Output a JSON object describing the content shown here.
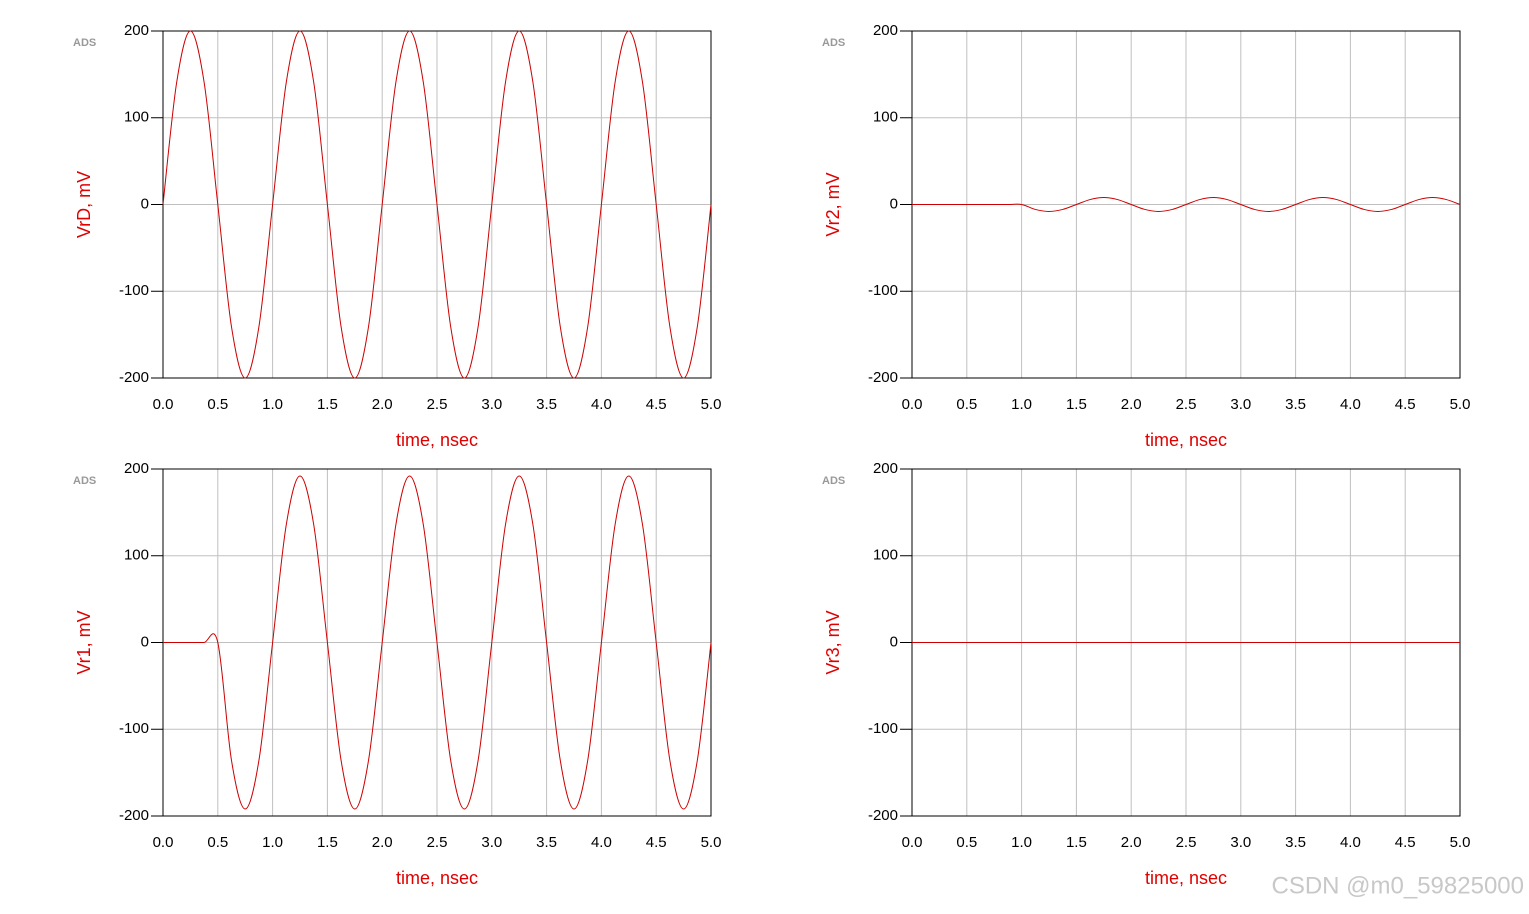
{
  "chart_data": [
    {
      "type": "line",
      "logo": "ADS",
      "ylabel": "VrD, mV",
      "xlabel": "time, nsec",
      "color": "#cc0000",
      "grid": true,
      "x": [
        0,
        0.125,
        0.25,
        0.375,
        0.5,
        0.625,
        0.75,
        0.875,
        1,
        1.125,
        1.25,
        1.375,
        1.5,
        1.625,
        1.75,
        1.875,
        2,
        2.125,
        2.25,
        2.375,
        2.5,
        2.625,
        2.75,
        2.875,
        3,
        3.125,
        3.25,
        3.375,
        3.5,
        3.625,
        3.75,
        3.875,
        4,
        4.125,
        4.25,
        4.375,
        4.5,
        4.625,
        4.75,
        4.875,
        5
      ],
      "values": [
        0,
        141,
        200,
        141,
        0,
        -141,
        -200,
        -141,
        0,
        141,
        200,
        141,
        0,
        -141,
        -200,
        -141,
        0,
        141,
        200,
        141,
        0,
        -141,
        -200,
        -141,
        0,
        141,
        200,
        141,
        0,
        -141,
        -200,
        -141,
        0,
        141,
        200,
        141,
        0,
        -141,
        -200,
        -141,
        0
      ],
      "xlim": [
        0,
        5
      ],
      "ylim": [
        -200,
        200
      ],
      "xticks": [
        {
          "value": 0,
          "label": "0.0"
        },
        0.5,
        {
          "value": 1,
          "label": "1.0"
        },
        1.5,
        {
          "value": 2,
          "label": "2.0"
        },
        2.5,
        {
          "value": 3,
          "label": "3.0"
        },
        3.5,
        {
          "value": 4,
          "label": "4.0"
        },
        4.5,
        {
          "value": 5,
          "label": "5.0"
        }
      ],
      "yticks": [
        -200,
        -100,
        0,
        100,
        200
      ]
    },
    {
      "type": "line",
      "logo": "ADS",
      "ylabel": "Vr2, mV",
      "xlabel": "time, nsec",
      "color": "#cc0000",
      "grid": true,
      "x": [
        0,
        0.125,
        0.25,
        0.375,
        0.5,
        0.625,
        0.75,
        0.875,
        1,
        1.125,
        1.25,
        1.375,
        1.5,
        1.625,
        1.75,
        1.875,
        2,
        2.125,
        2.25,
        2.375,
        2.5,
        2.625,
        2.75,
        2.875,
        3,
        3.125,
        3.25,
        3.375,
        3.5,
        3.625,
        3.75,
        3.875,
        4,
        4.125,
        4.25,
        4.375,
        4.5,
        4.625,
        4.75,
        4.875,
        5
      ],
      "values": [
        0,
        0,
        0,
        0,
        0,
        0,
        0,
        0,
        0,
        -5.7,
        -8,
        -5.7,
        0,
        5.7,
        8,
        5.7,
        0,
        -5.7,
        -8,
        -5.7,
        0,
        5.7,
        8,
        5.7,
        0,
        -5.7,
        -8,
        -5.7,
        0,
        5.7,
        8,
        5.7,
        0,
        -5.7,
        -8,
        -5.7,
        0,
        5.7,
        8,
        5.7,
        0
      ],
      "xlim": [
        0,
        5
      ],
      "ylim": [
        -200,
        200
      ],
      "xticks": [
        {
          "value": 0,
          "label": "0.0"
        },
        0.5,
        {
          "value": 1,
          "label": "1.0"
        },
        1.5,
        {
          "value": 2,
          "label": "2.0"
        },
        2.5,
        {
          "value": 3,
          "label": "3.0"
        },
        3.5,
        {
          "value": 4,
          "label": "4.0"
        },
        4.5,
        {
          "value": 5,
          "label": "5.0"
        }
      ],
      "yticks": [
        -200,
        -100,
        0,
        100,
        200
      ]
    },
    {
      "type": "line",
      "logo": "ADS",
      "ylabel": "Vr1, mV",
      "xlabel": "time, nsec",
      "color": "#cc0000",
      "grid": true,
      "x": [
        0,
        0.125,
        0.25,
        0.375,
        0.5,
        0.625,
        0.75,
        0.875,
        1,
        1.125,
        1.25,
        1.375,
        1.5,
        1.625,
        1.75,
        1.875,
        2,
        2.125,
        2.25,
        2.375,
        2.5,
        2.625,
        2.75,
        2.875,
        3,
        3.125,
        3.25,
        3.375,
        3.5,
        3.625,
        3.75,
        3.875,
        4,
        4.125,
        4.25,
        4.375,
        4.5,
        4.625,
        4.75,
        4.875,
        5
      ],
      "values": [
        0,
        0,
        0,
        0,
        0,
        -136,
        -192,
        -136,
        0,
        136,
        192,
        136,
        0,
        -136,
        -192,
        -136,
        0,
        136,
        192,
        136,
        0,
        -136,
        -192,
        -136,
        0,
        136,
        192,
        136,
        0,
        -136,
        -192,
        -136,
        0,
        136,
        192,
        136,
        0,
        -136,
        -192,
        -136,
        0
      ],
      "xlim": [
        0,
        5
      ],
      "ylim": [
        -200,
        200
      ],
      "xticks": [
        {
          "value": 0,
          "label": "0.0"
        },
        0.5,
        {
          "value": 1,
          "label": "1.0"
        },
        1.5,
        {
          "value": 2,
          "label": "2.0"
        },
        2.5,
        {
          "value": 3,
          "label": "3.0"
        },
        3.5,
        {
          "value": 4,
          "label": "4.0"
        },
        4.5,
        {
          "value": 5,
          "label": "5.0"
        }
      ],
      "yticks": [
        -200,
        -100,
        0,
        100,
        200
      ]
    },
    {
      "type": "line",
      "logo": "ADS",
      "ylabel": "Vr3, mV",
      "xlabel": "time, nsec",
      "color": "#cc0000",
      "grid": true,
      "x": [
        0,
        0.125,
        0.25,
        0.375,
        0.5,
        0.625,
        0.75,
        0.875,
        1,
        1.125,
        1.25,
        1.375,
        1.5,
        1.625,
        1.75,
        1.875,
        2,
        2.125,
        2.25,
        2.375,
        2.5,
        2.625,
        2.75,
        2.875,
        3,
        3.125,
        3.25,
        3.375,
        3.5,
        3.625,
        3.75,
        3.875,
        4,
        4.125,
        4.25,
        4.375,
        4.5,
        4.625,
        4.75,
        4.875,
        5
      ],
      "values": [
        0,
        0,
        0,
        0,
        0,
        0,
        0,
        0,
        0,
        0,
        0,
        0,
        0,
        0,
        0,
        0,
        0,
        0,
        0,
        0,
        0,
        0,
        0,
        0,
        0,
        0,
        0,
        0,
        0,
        0,
        0,
        0,
        0,
        0,
        0,
        0,
        0,
        0,
        0,
        0,
        0
      ],
      "xlim": [
        0,
        5
      ],
      "ylim": [
        -200,
        200
      ],
      "xticks": [
        {
          "value": 0,
          "label": "0.0"
        },
        0.5,
        {
          "value": 1,
          "label": "1.0"
        },
        1.5,
        {
          "value": 2,
          "label": "2.0"
        },
        2.5,
        {
          "value": 3,
          "label": "3.0"
        },
        3.5,
        {
          "value": 4,
          "label": "4.0"
        },
        4.5,
        {
          "value": 5,
          "label": "5.0"
        }
      ],
      "yticks": [
        -200,
        -100,
        0,
        100,
        200
      ]
    }
  ],
  "watermark": "CSDN @m0_59825000"
}
